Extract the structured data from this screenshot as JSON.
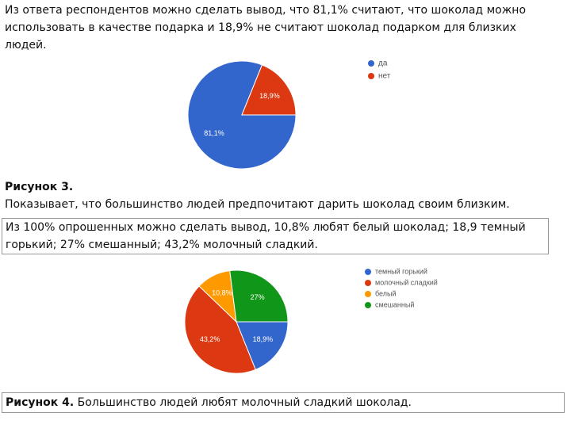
{
  "paragraphs": {
    "intro": [
      "Из ответа респондентов  можно сделать вывод, что 81,1% считают, что шоколад можно",
      "использовать в качестве подарка и 18,9% не считают шоколад подарком для близких",
      "людей."
    ],
    "caption3_label": "Рисунок 3.",
    "caption3_text": "Показывает, что большинство людей предпочитают дарить шоколад своим близким.",
    "second": [
      "Из 100% опрошенных можно сделать вывод, 10,8% любят белый шоколад; 18,9 темный",
      "горький; 27% смешанный; 43,2%  молочный сладкий."
    ],
    "caption4_label": "Рисунок 4.",
    "caption4_text": " Большинство людей любят молочный сладкий шоколад."
  },
  "chart_data": [
    {
      "type": "pie",
      "categories": [
        "да",
        "нет"
      ],
      "values": [
        81.1,
        18.9
      ],
      "value_labels": [
        "81,1%",
        "18,9%"
      ],
      "colors": [
        "#3366cc",
        "#dc3912"
      ]
    },
    {
      "type": "pie",
      "categories": [
        "темный горький",
        "молочный сладкий",
        "белый",
        "смешанный"
      ],
      "values": [
        18.9,
        43.2,
        10.8,
        27
      ],
      "value_labels": [
        "18,9%",
        "43,2%",
        "10,8%",
        "27%"
      ],
      "colors": [
        "#3366cc",
        "#dc3912",
        "#ff9900",
        "#109618"
      ]
    }
  ]
}
